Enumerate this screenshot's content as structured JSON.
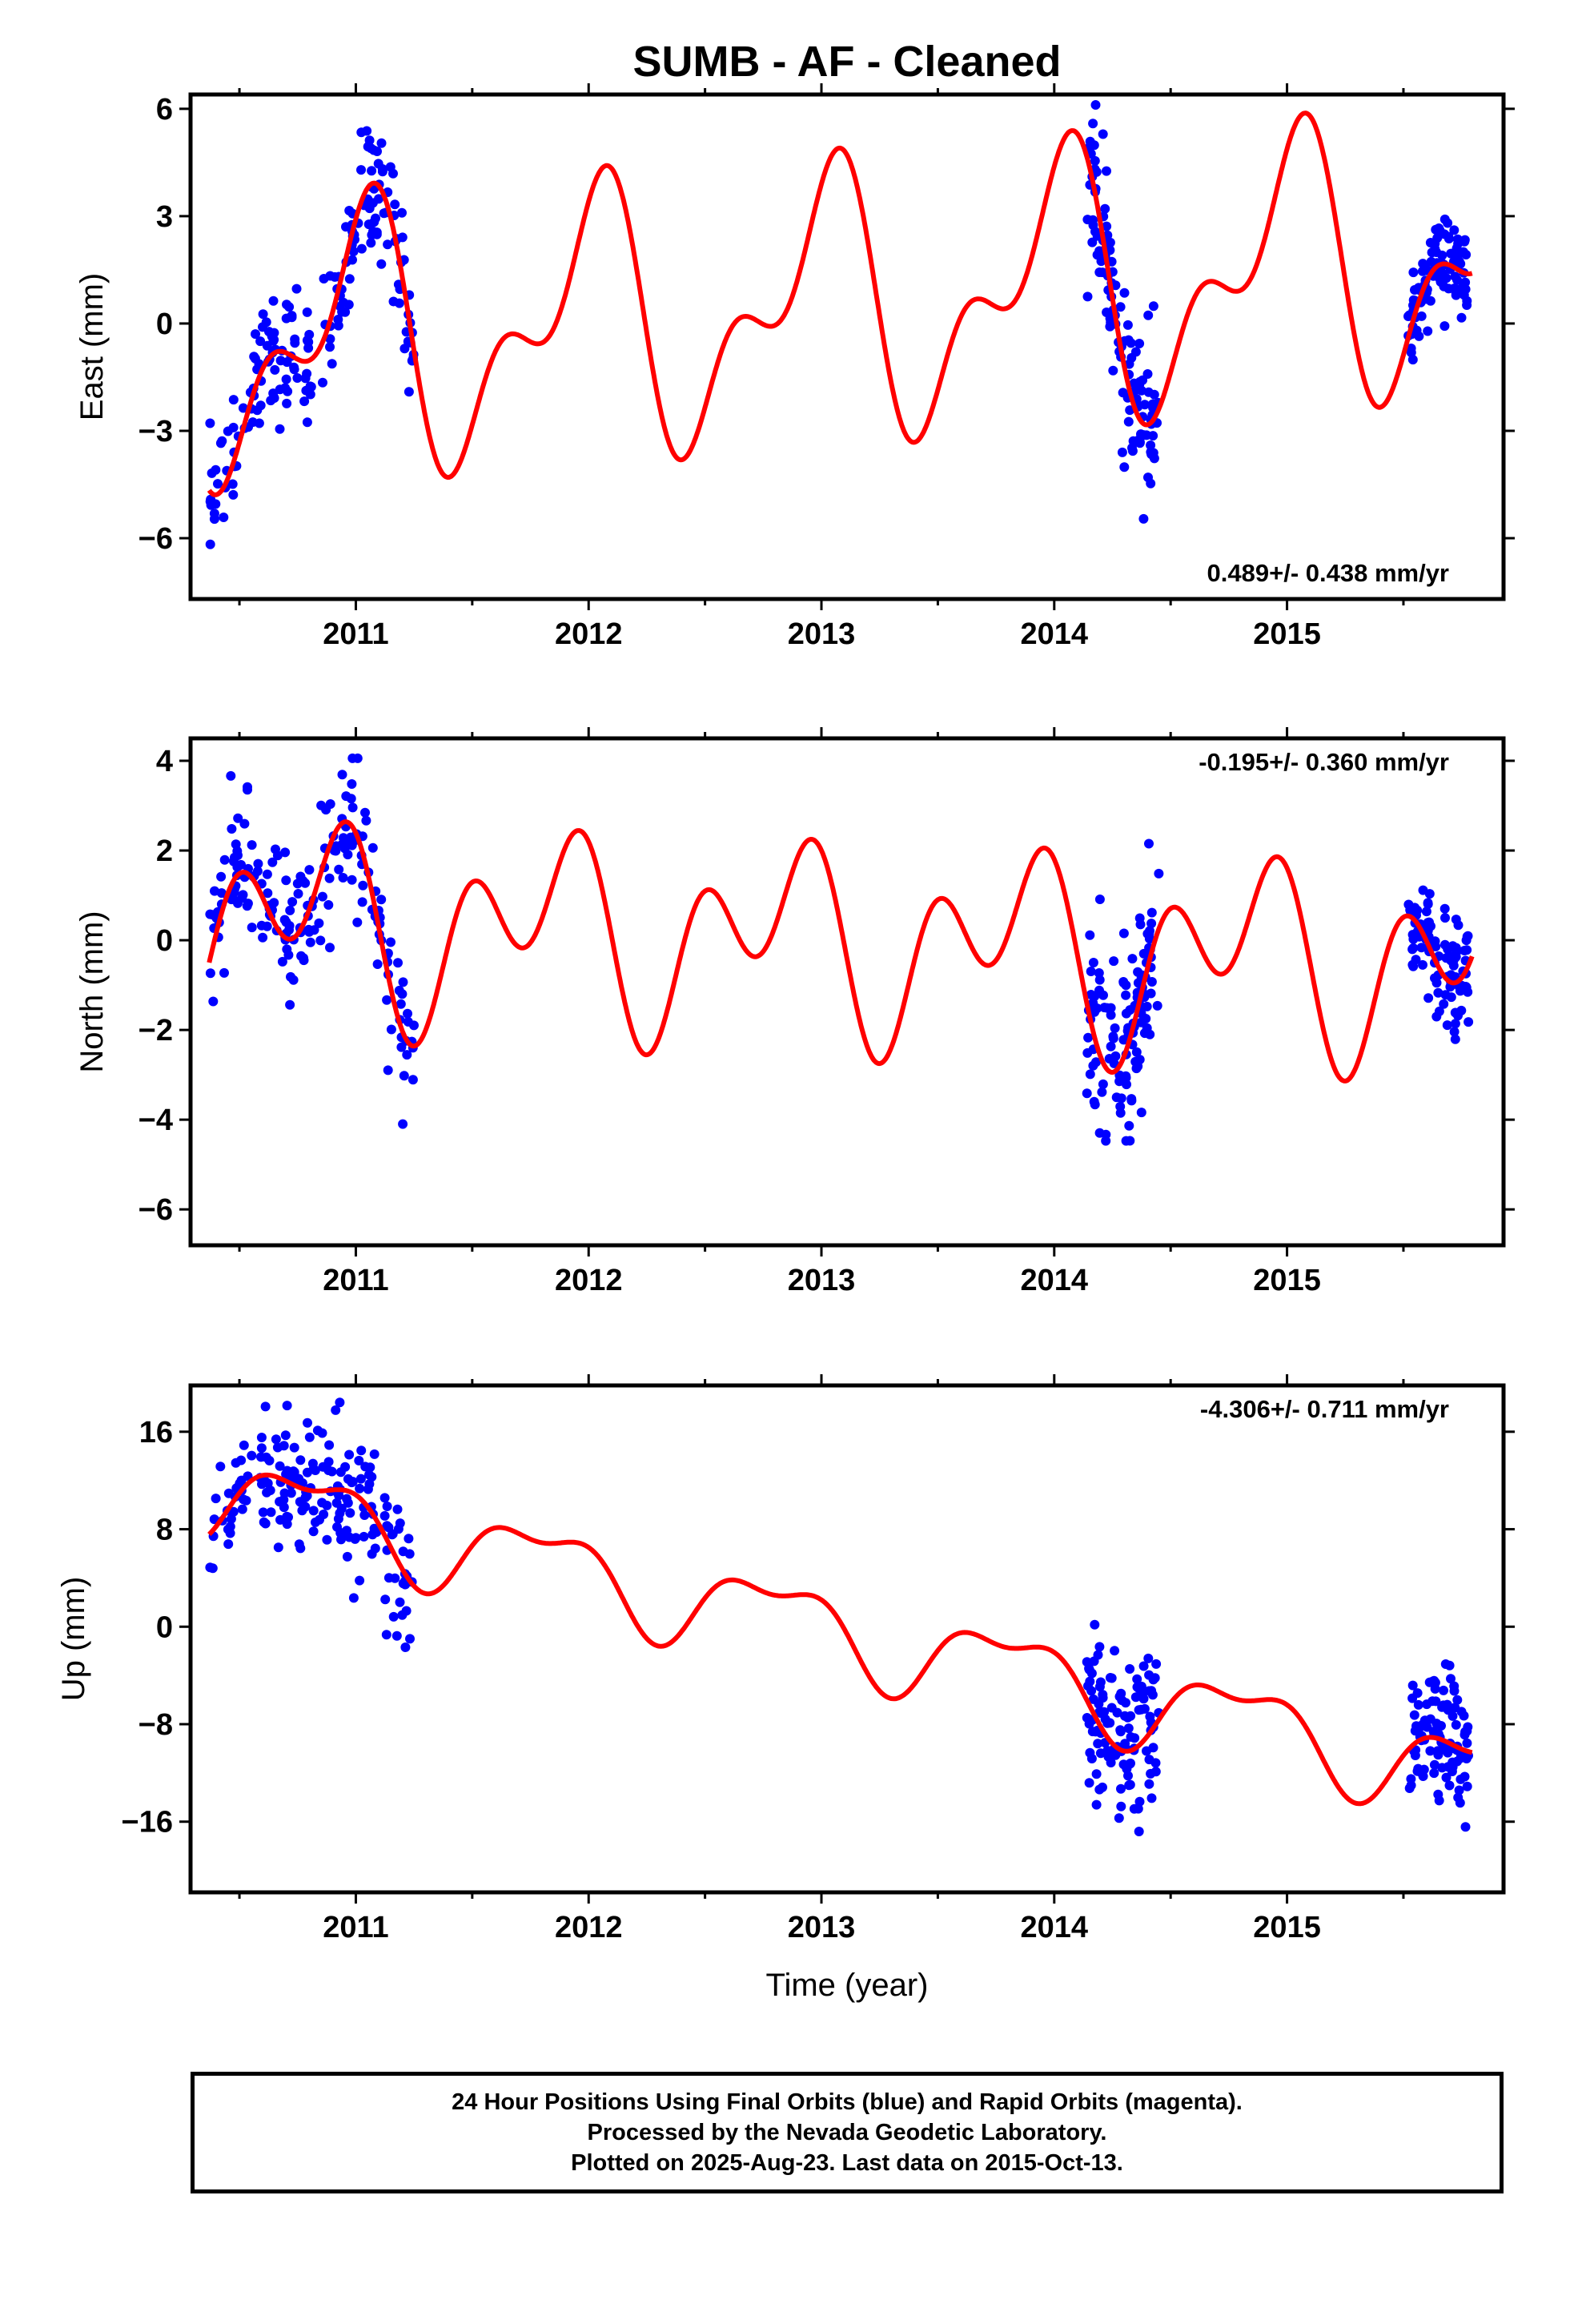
{
  "title": "SUMB  - AF - Cleaned",
  "xlabel": "Time (year)",
  "xticks": [
    "2011",
    "2012",
    "2013",
    "2014",
    "2015"
  ],
  "colors": {
    "observed": "#0000ff",
    "model": "#ff0000",
    "frame": "#000000"
  },
  "footer": {
    "line1": "24 Hour Positions Using Final Orbits (blue) and Rapid Orbits (magenta).",
    "line2": "Processed by the Nevada Geodetic Laboratory.",
    "line3": "Plotted on 2025-Aug-23. Last data on 2015-Oct-13."
  },
  "chart_data": [
    {
      "type": "scatter",
      "component": "east",
      "ylabel": "East (mm)",
      "rate_label": "0.489+/- 0.438 mm/yr",
      "rate_position": "bottom-right",
      "xlim": [
        2010.29,
        2015.93
      ],
      "ylim": [
        -7.7,
        6.4
      ],
      "yticks": [
        -6,
        -3,
        0,
        3,
        6
      ],
      "model": {
        "rate": 0.489,
        "offset": 0.5,
        "seasonal": [
          {
            "a": 0.0,
            "b": 3.0,
            "f": 1
          },
          {
            "a": 1.8,
            "b": 0.4,
            "f": 2
          }
        ]
      },
      "data_segments": [
        {
          "x": [
            2010.37,
            2011.25
          ],
          "n": 190,
          "sigma": 0.9,
          "shift": 0.0
        },
        {
          "x": [
            2014.14,
            2014.45
          ],
          "n": 120,
          "sigma": 1.1,
          "shift": 0.0
        },
        {
          "x": [
            2015.52,
            2015.78
          ],
          "n": 100,
          "sigma": 0.6,
          "shift": 0.0
        }
      ]
    },
    {
      "type": "scatter",
      "component": "north",
      "ylabel": "North (mm)",
      "rate_label": "-0.195+/- 0.360 mm/yr",
      "rate_position": "top-right",
      "xlim": [
        2010.29,
        2015.93
      ],
      "ylim": [
        -6.8,
        4.5
      ],
      "yticks": [
        -6,
        -4,
        -2,
        0,
        2,
        4
      ],
      "model": {
        "rate": -0.195,
        "offset": 0.0,
        "seasonal": [
          {
            "a": -1.2,
            "b": 0.5,
            "f": 1
          },
          {
            "a": -0.3,
            "b": 1.5,
            "f": 2
          }
        ]
      },
      "data_segments": [
        {
          "x": [
            2010.37,
            2011.25
          ],
          "n": 190,
          "sigma": 0.8,
          "shift": 0.0
        },
        {
          "x": [
            2014.14,
            2014.45
          ],
          "n": 120,
          "sigma": 1.1,
          "shift": 0.0
        },
        {
          "x": [
            2015.52,
            2015.78
          ],
          "n": 100,
          "sigma": 0.6,
          "shift": 0.0
        }
      ]
    },
    {
      "type": "scatter",
      "component": "up",
      "ylabel": "Up (mm)",
      "rate_label": "-4.306+/- 0.711 mm/yr",
      "rate_position": "top-right",
      "xlim": [
        2010.29,
        2015.93
      ],
      "ylim": [
        -21.8,
        19.8
      ],
      "yticks": [
        -16,
        -8,
        0,
        8,
        16
      ],
      "model": {
        "rate": -4.306,
        "offset": 0.0,
        "seasonal": [
          {
            "a": -3.0,
            "b": 1.0,
            "f": 1
          },
          {
            "a": 0.8,
            "b": 1.2,
            "f": 2
          }
        ]
      },
      "data_segments": [
        {
          "x": [
            2010.37,
            2011.25
          ],
          "n": 190,
          "sigma": 3.0,
          "shift": 0.0
        },
        {
          "x": [
            2014.14,
            2014.45
          ],
          "n": 120,
          "sigma": 3.5,
          "shift": 0.0
        },
        {
          "x": [
            2015.52,
            2015.78
          ],
          "n": 100,
          "sigma": 2.8,
          "shift": 0.0
        }
      ]
    }
  ]
}
